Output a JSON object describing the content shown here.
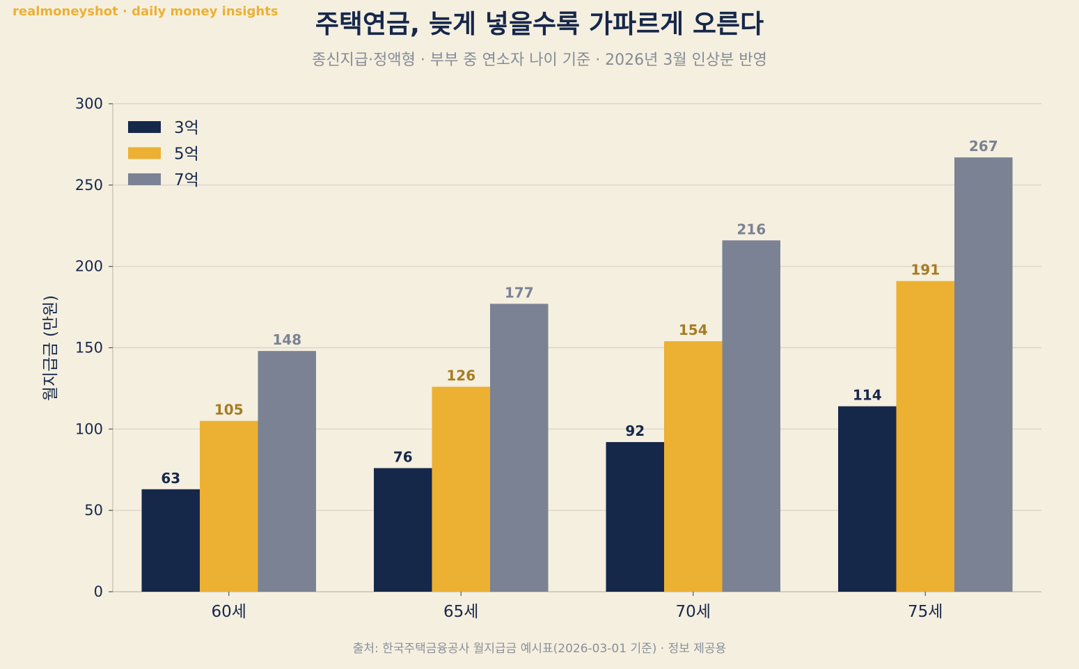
{
  "header": {
    "brand": "realmoneyshot · daily money insights",
    "title": "주택연금, 늦게 넣을수록 가파르게 오른다",
    "subtitle": "종신지급·정액형 · 부부 중 연소자 나이 기준 · 2026년 3월 인상분 반영"
  },
  "footer": {
    "source": "출처: 한국주택금융공사 월지급금 예시표(2026-03-01 기준) · 정보 제공용"
  },
  "colors": {
    "background": "#f5efe0",
    "grid": "#dcd6c8",
    "axis": "#c9c2b2",
    "text": "#16284a"
  },
  "chart_data": {
    "type": "bar",
    "categories": [
      "60세",
      "65세",
      "70세",
      "75세"
    ],
    "series": [
      {
        "name": "3억",
        "values": [
          63,
          76,
          92,
          114
        ],
        "color": "#16284a",
        "label_color": "#16284a"
      },
      {
        "name": "5억",
        "values": [
          105,
          126,
          154,
          191
        ],
        "color": "#ecb032",
        "label_color": "#a67c22"
      },
      {
        "name": "7억",
        "values": [
          148,
          177,
          216,
          267
        ],
        "color": "#7b8293",
        "label_color": "#7b8293"
      }
    ],
    "title": "주택연금, 늦게 넣을수록 가파르게 오른다",
    "subtitle": "종신지급·정액형 · 부부 중 연소자 나이 기준 · 2026년 3월 인상분 반영",
    "xlabel": "",
    "ylabel": "월지급금 (만원)",
    "ylim": [
      0,
      300
    ],
    "yticks": [
      0,
      50,
      100,
      150,
      200,
      250,
      300
    ],
    "grid": true,
    "legend_position": "top-left"
  }
}
